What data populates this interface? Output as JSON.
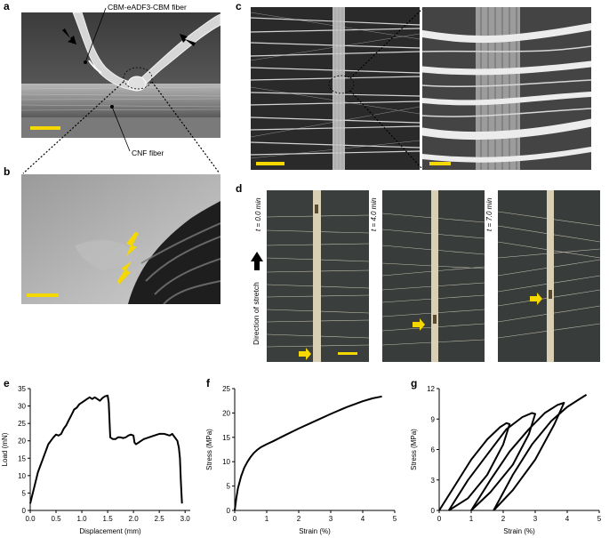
{
  "panels": {
    "a": {
      "label": "a",
      "top_fiber_label": "CBM-eADF3-CBM fiber",
      "bottom_fiber_label": "CNF fiber"
    },
    "b": {
      "label": "b"
    },
    "c": {
      "label": "c"
    },
    "d": {
      "label": "d",
      "direction_label": "Direction of stretch",
      "times": [
        "t = 0.0 min",
        "t = 4.0 min",
        "t = 7.0 min"
      ]
    },
    "e": {
      "label": "e"
    },
    "f": {
      "label": "f"
    },
    "g": {
      "label": "g"
    }
  },
  "colors": {
    "scale_bar": "#f5d800",
    "arrow_yellow": "#f5d800",
    "curve": "#000000"
  },
  "chart_data": [
    {
      "panel": "e",
      "type": "line",
      "xlabel": "Displacement (mm)",
      "ylabel": "Load (mN)",
      "xlim": [
        0,
        3.1
      ],
      "ylim": [
        0,
        35
      ],
      "xticks": [
        "0.0",
        "0.5",
        "1.0",
        "1.5",
        "2.0",
        "2.5",
        "3.0"
      ],
      "yticks": [
        "0",
        "5",
        "10",
        "15",
        "20",
        "25",
        "30",
        "35"
      ],
      "series": [
        {
          "x": [
            0,
            0.05,
            0.1,
            0.15,
            0.2,
            0.25,
            0.3,
            0.35,
            0.4,
            0.45,
            0.5,
            0.55,
            0.6,
            0.65,
            0.7,
            0.75,
            0.8,
            0.85,
            0.9,
            0.95,
            1.0,
            1.05,
            1.1,
            1.15,
            1.2,
            1.25,
            1.3,
            1.35,
            1.4,
            1.45,
            1.5,
            1.52,
            1.55,
            1.6,
            1.65,
            1.7,
            1.75,
            1.8,
            1.85,
            1.9,
            1.95,
            2.0,
            2.02,
            2.05,
            2.1,
            2.15,
            2.2,
            2.3,
            2.4,
            2.5,
            2.6,
            2.7,
            2.75,
            2.8,
            2.85,
            2.88,
            2.9,
            2.92,
            2.94
          ],
          "y": [
            2,
            5,
            8,
            11,
            13,
            15,
            17,
            19,
            20,
            21,
            21.8,
            21.5,
            22,
            23.5,
            24.5,
            26,
            27.5,
            29,
            29.5,
            30.5,
            31,
            31.5,
            32,
            32.5,
            32,
            32.5,
            32,
            31.5,
            32.3,
            32.8,
            33,
            31,
            21,
            20.5,
            20.5,
            21,
            21,
            20.8,
            21,
            21.5,
            21.8,
            21.5,
            19.5,
            19,
            19.5,
            20,
            20.5,
            21,
            21.5,
            22,
            22,
            21.5,
            22,
            21,
            20,
            18,
            15,
            8,
            2
          ]
        }
      ]
    },
    {
      "panel": "f",
      "type": "line",
      "xlabel": "Strain (%)",
      "ylabel": "Stress (MPa)",
      "xlim": [
        0,
        5
      ],
      "ylim": [
        0,
        25
      ],
      "xticks": [
        "0",
        "1",
        "2",
        "3",
        "4",
        "5"
      ],
      "yticks": [
        "0",
        "5",
        "10",
        "15",
        "20",
        "25"
      ],
      "series": [
        {
          "x": [
            0,
            0.05,
            0.1,
            0.2,
            0.3,
            0.4,
            0.5,
            0.6,
            0.7,
            0.8,
            1.0,
            1.2,
            1.5,
            2.0,
            2.5,
            3.0,
            3.5,
            4.0,
            4.3,
            4.6
          ],
          "y": [
            0,
            2.5,
            4.5,
            7,
            8.8,
            10,
            11,
            11.8,
            12.4,
            12.9,
            13.6,
            14.2,
            15.2,
            16.8,
            18.3,
            19.8,
            21.2,
            22.4,
            23,
            23.4
          ]
        }
      ]
    },
    {
      "panel": "g",
      "type": "line",
      "xlabel": "Strain (%)",
      "ylabel": "Stress (MPa)",
      "xlim": [
        0,
        5
      ],
      "ylim": [
        0,
        12
      ],
      "xticks": [
        "0",
        "1",
        "2",
        "3",
        "4",
        "5"
      ],
      "yticks": [
        "0",
        "3",
        "6",
        "9",
        "12"
      ],
      "series": [
        {
          "x": [
            0,
            0.5,
            1.0,
            1.5,
            1.9,
            2.1,
            2.2,
            2.0,
            1.5,
            0.9,
            0.3
          ],
          "y": [
            0,
            2.5,
            5,
            7,
            8.2,
            8.6,
            8.5,
            6.5,
            3.5,
            1.2,
            0
          ]
        },
        {
          "x": [
            0.3,
            0.9,
            1.5,
            2.1,
            2.6,
            2.9,
            3.0,
            2.8,
            2.3,
            1.6,
            1.0
          ],
          "y": [
            0,
            3,
            5.5,
            8,
            9.2,
            9.6,
            9.5,
            7.5,
            4.5,
            1.8,
            0
          ]
        },
        {
          "x": [
            1.0,
            1.6,
            2.2,
            2.8,
            3.3,
            3.7,
            3.9,
            3.6,
            3.0,
            2.3,
            1.7
          ],
          "y": [
            0,
            3,
            5.8,
            8,
            9.6,
            10.4,
            10.6,
            8.5,
            5,
            2,
            0
          ]
        },
        {
          "x": [
            1.7,
            2.3,
            2.9,
            3.5,
            4.0,
            4.4,
            4.6
          ],
          "y": [
            0,
            3.5,
            6.5,
            8.8,
            10.2,
            11,
            11.4
          ]
        }
      ]
    }
  ]
}
